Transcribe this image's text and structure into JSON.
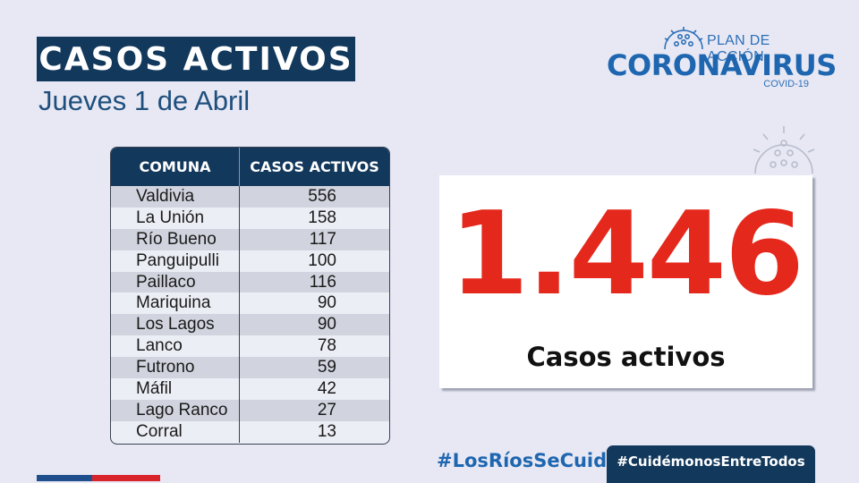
{
  "header": {
    "title": "CASOS ACTIVOS",
    "date": "Jueves 1 de Abril"
  },
  "logo": {
    "plan": "PLAN DE ACCIÓN",
    "main": "CORONAVIRUS",
    "sub": "COVID-19",
    "icon": "virus-icon"
  },
  "table": {
    "headers": [
      "COMUNA",
      "CASOS ACTIVOS"
    ],
    "rows": [
      [
        "Valdivia",
        "556"
      ],
      [
        "La Unión",
        "158"
      ],
      [
        "Río Bueno",
        "117"
      ],
      [
        "Panguipulli",
        "100"
      ],
      [
        "Paillaco",
        "116"
      ],
      [
        "Mariquina",
        "90"
      ],
      [
        "Los Lagos",
        "90"
      ],
      [
        "Lanco",
        "78"
      ],
      [
        "Futrono",
        "59"
      ],
      [
        "Máfil",
        "42"
      ],
      [
        "Lago Ranco",
        "27"
      ],
      [
        "Corral",
        "13"
      ]
    ]
  },
  "total": {
    "value": "1.446",
    "label": "Casos activos"
  },
  "hashtags": {
    "first": "#LosRíosSeCuida",
    "second": "#CuidémonosEntreTodos"
  },
  "colors": {
    "navy": "#12385c",
    "blue": "#1e66b0",
    "red": "#e5281c",
    "background": "#e7e8f4"
  }
}
